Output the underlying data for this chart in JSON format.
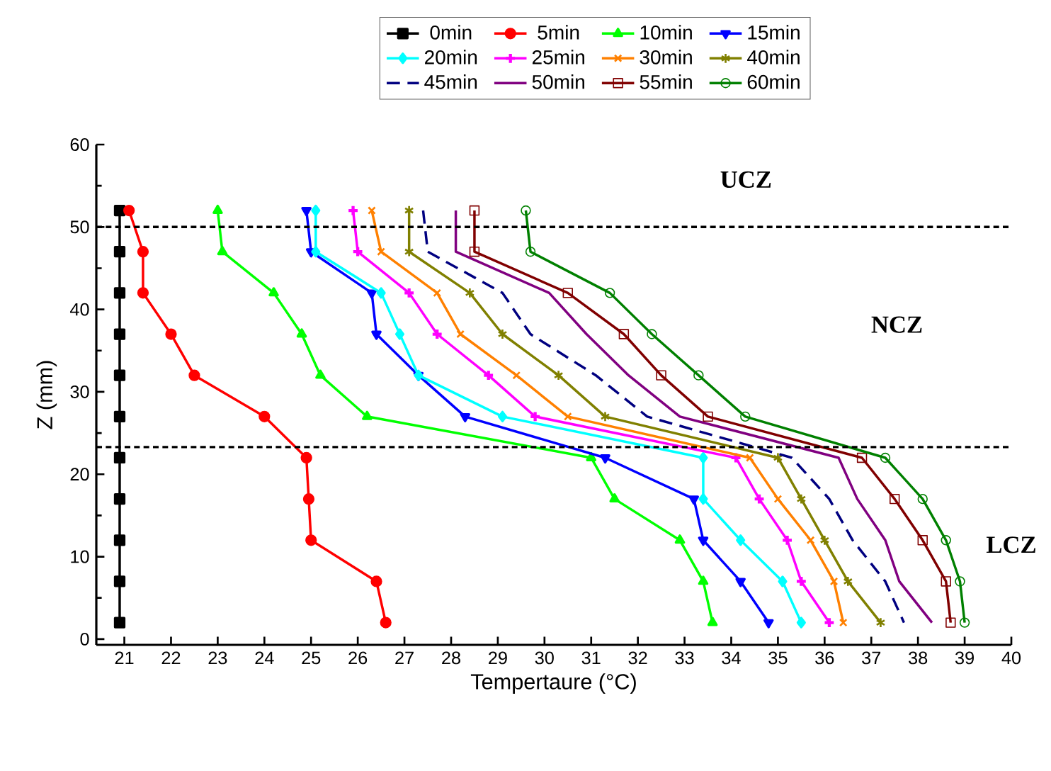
{
  "chart_data": {
    "type": "line",
    "xlabel": "Tempertaure (°C)",
    "ylabel": "Z (mm)",
    "xlim": [
      20.4,
      40
    ],
    "ylim": [
      -0.7,
      60
    ],
    "xticks": [
      21,
      22,
      23,
      24,
      25,
      26,
      27,
      28,
      29,
      30,
      31,
      32,
      33,
      34,
      35,
      36,
      37,
      38,
      39,
      40
    ],
    "yticks": [
      0,
      {
        "value": 5,
        "label": null
      },
      10,
      {
        "value": 15,
        "label": null
      },
      20,
      {
        "value": 25,
        "label": null
      },
      30,
      {
        "value": 35,
        "label": null
      },
      40,
      {
        "value": 45,
        "label": null
      },
      50,
      {
        "value": 55,
        "label": null
      },
      60
    ],
    "legend": "top",
    "grid": false,
    "line_style": "solid",
    "ref_lines": [
      {
        "axis": "y",
        "value": 50,
        "line_style": "dashed",
        "color": "#000000"
      },
      {
        "axis": "y",
        "value": 23.3,
        "line_style": "dashed",
        "color": "#000000"
      }
    ],
    "annotations": [
      "UCZ",
      "NCZ",
      "LCZ"
    ],
    "series": [
      {
        "name": "0min",
        "color": "#000000",
        "marker": "square",
        "x": [
          20.9,
          20.9,
          20.9,
          20.9,
          20.9,
          20.9,
          20.9,
          20.9,
          20.9,
          20.9,
          20.9
        ],
        "values": [
          52,
          47,
          42,
          37,
          32,
          27,
          22,
          17,
          12,
          7,
          2
        ]
      },
      {
        "name": "5min",
        "color": "#ff0000",
        "marker": "circle",
        "x": [
          21.1,
          21.4,
          21.4,
          22.0,
          22.5,
          24.0,
          24.9,
          24.95,
          25.0,
          26.4,
          26.6
        ],
        "values": [
          52,
          47,
          42,
          37,
          32,
          27,
          22,
          17,
          12,
          7,
          2
        ]
      },
      {
        "name": "10min",
        "color": "#00ff00",
        "marker": "triangle",
        "x": [
          23.0,
          23.1,
          24.2,
          24.8,
          25.2,
          26.2,
          31.0,
          31.5,
          32.9,
          33.4,
          33.6
        ],
        "values": [
          52,
          47,
          42,
          37,
          32,
          27,
          22,
          17,
          12,
          7,
          2
        ]
      },
      {
        "name": "15min",
        "color": "#0000ff",
        "marker": "triangle_down",
        "x": [
          24.9,
          25.0,
          26.3,
          26.4,
          27.3,
          28.3,
          31.3,
          33.2,
          33.4,
          34.2,
          34.8
        ],
        "values": [
          52,
          47,
          42,
          37,
          32,
          27,
          22,
          17,
          12,
          7,
          2
        ]
      },
      {
        "name": "20min",
        "color": "#00ffff",
        "marker": "diamond",
        "x": [
          25.1,
          25.1,
          26.5,
          26.9,
          27.3,
          29.1,
          33.4,
          33.4,
          34.2,
          35.1,
          35.5
        ],
        "values": [
          52,
          47,
          42,
          37,
          32,
          27,
          22,
          17,
          12,
          7,
          2
        ]
      },
      {
        "name": "25min",
        "color": "#ff00ff",
        "marker": "plus",
        "x": [
          25.9,
          26.0,
          27.1,
          27.7,
          28.8,
          29.8,
          34.1,
          34.6,
          35.2,
          35.5,
          36.1
        ],
        "values": [
          52,
          47,
          42,
          37,
          32,
          27,
          22,
          17,
          12,
          7,
          2
        ]
      },
      {
        "name": "30min",
        "color": "#ff8000",
        "marker": "x",
        "x": [
          26.3,
          26.5,
          27.7,
          28.2,
          29.4,
          30.5,
          34.4,
          35.0,
          35.7,
          36.2,
          36.4
        ],
        "values": [
          52,
          47,
          42,
          37,
          32,
          27,
          22,
          17,
          12,
          7,
          2
        ]
      },
      {
        "name": "40min",
        "color": "#808000",
        "marker": "cross",
        "x": [
          27.1,
          27.1,
          28.4,
          29.1,
          30.3,
          31.3,
          35.0,
          35.5,
          36.0,
          36.5,
          37.2
        ],
        "values": [
          52,
          47,
          42,
          37,
          32,
          27,
          22,
          17,
          12,
          7,
          2
        ]
      },
      {
        "name": "45min",
        "color": "#000080",
        "line_style": "dashed",
        "x": [
          27.4,
          27.5,
          29.1,
          29.7,
          31.1,
          32.2,
          35.3,
          36.1,
          36.6,
          37.3,
          37.7
        ],
        "values": [
          52,
          47,
          42,
          37,
          32,
          27,
          22,
          17,
          12,
          7,
          2
        ]
      },
      {
        "name": "50min",
        "color": "#800080",
        "x": [
          28.1,
          28.1,
          30.1,
          30.9,
          31.8,
          32.9,
          36.3,
          36.7,
          37.3,
          37.6,
          38.3
        ],
        "values": [
          52,
          47,
          42,
          37,
          32,
          27,
          22,
          17,
          12,
          7,
          2
        ]
      },
      {
        "name": "55min",
        "color": "#800000",
        "marker": "square_open",
        "x": [
          28.5,
          28.5,
          30.5,
          31.7,
          32.5,
          33.5,
          36.8,
          37.5,
          38.1,
          38.6,
          38.7
        ],
        "values": [
          52,
          47,
          42,
          37,
          32,
          27,
          22,
          17,
          12,
          7,
          2
        ]
      },
      {
        "name": "60min",
        "color": "#008000",
        "marker": "circle_open",
        "x": [
          29.6,
          29.7,
          31.4,
          32.3,
          33.3,
          34.3,
          37.3,
          38.1,
          38.6,
          38.9,
          39.0
        ],
        "values": [
          52,
          47,
          42,
          37,
          32,
          27,
          22,
          17,
          12,
          7,
          2
        ]
      }
    ]
  }
}
